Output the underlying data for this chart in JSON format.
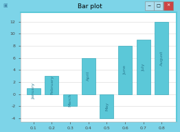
{
  "title": "Bar plot",
  "x_positions": [
    0.1,
    0.2,
    0.3,
    0.4,
    0.5,
    0.6,
    0.7,
    0.8
  ],
  "bar_values": [
    1,
    3,
    -2,
    6,
    -4,
    8,
    9,
    12
  ],
  "bar_labels": [
    "January",
    "February",
    "March",
    "April",
    "May",
    "June",
    "July",
    "August"
  ],
  "bar_width": 0.075,
  "bar_color": "#5BC8D8",
  "bar_edge_color": "#3AAABB",
  "xlim": [
    0.03,
    0.88
  ],
  "ylim": [
    -4.5,
    13.5
  ],
  "yticks": [
    -4,
    -2,
    0,
    2,
    4,
    6,
    8,
    10,
    12
  ],
  "xticks": [
    0.1,
    0.2,
    0.3,
    0.4,
    0.5,
    0.6,
    0.7,
    0.8
  ],
  "plot_bg": "#FFFFFF",
  "window_bg": "#7DD4E8",
  "title_bg": "#7DD4E8",
  "label_fontsize": 4.5,
  "tick_fontsize": 4.5,
  "title_fontsize": 6.5,
  "label_color": "#2a7a90",
  "grid_color": "#DDDDDD",
  "border_color": "#5BC8D8",
  "win_border": "#4AB8CC"
}
